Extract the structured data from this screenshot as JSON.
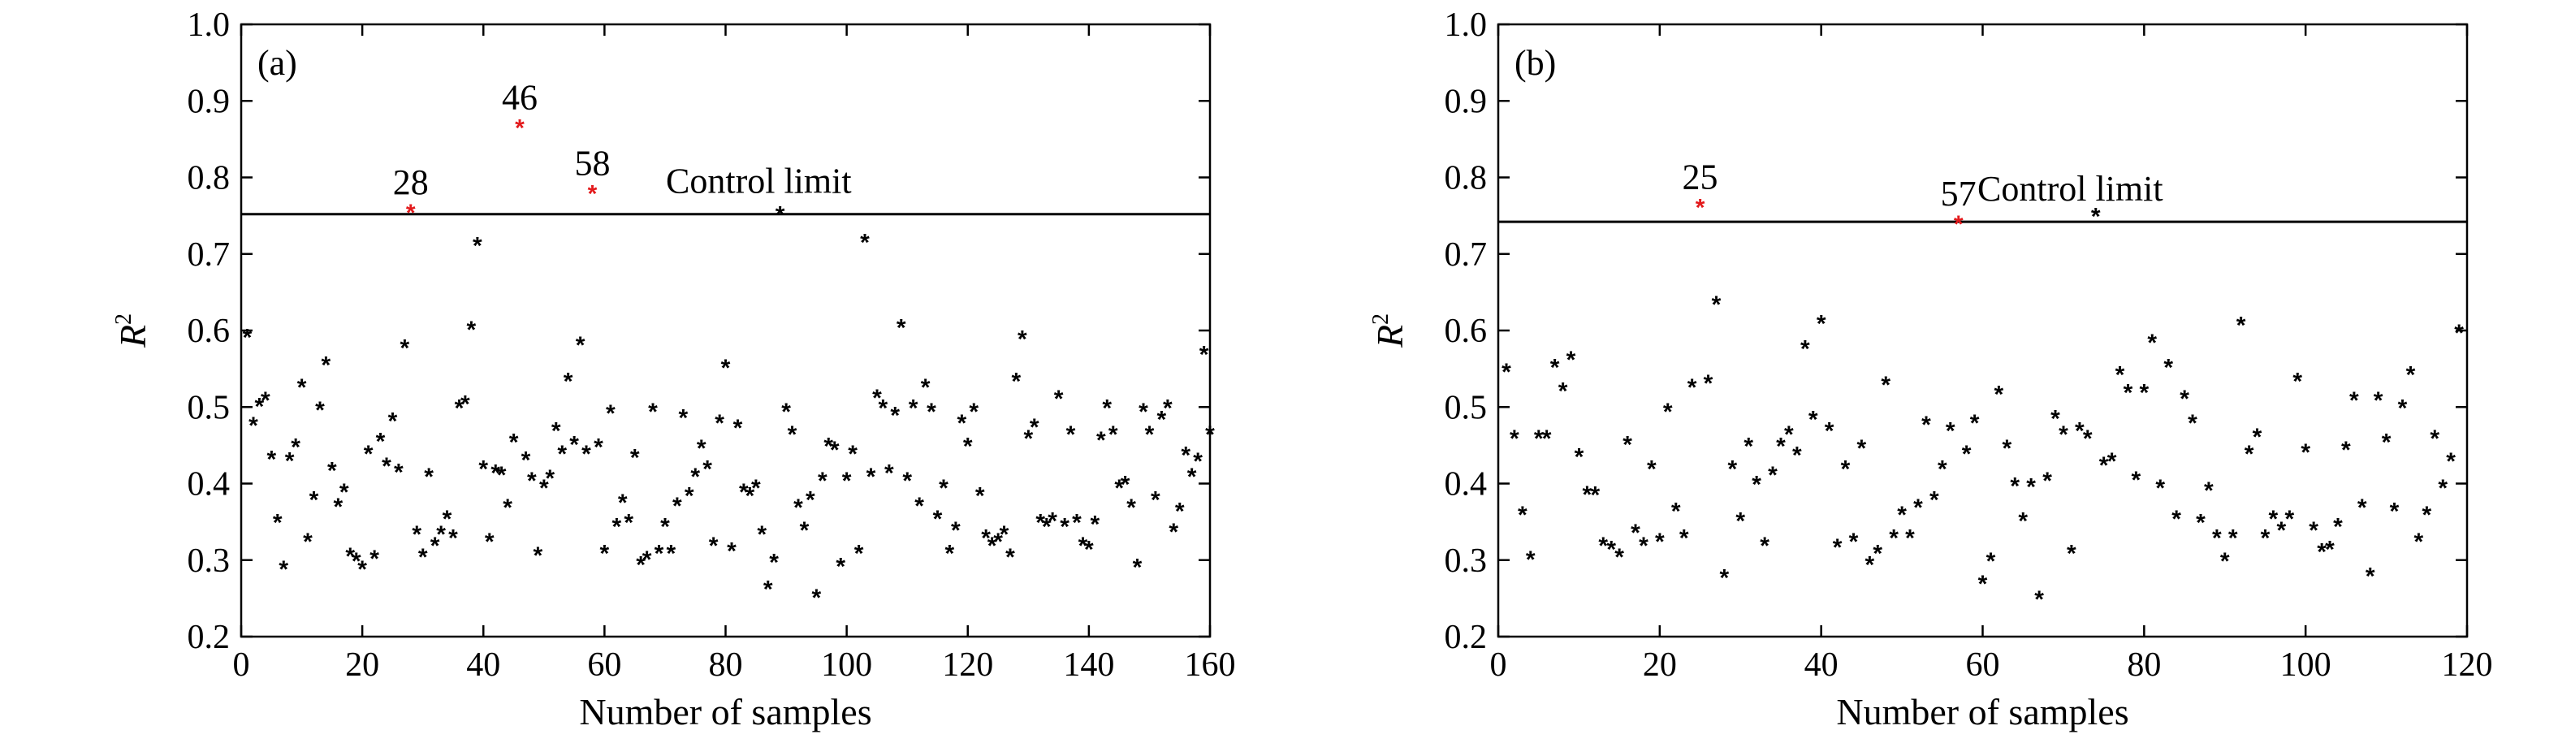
{
  "chart_data": [
    {
      "type": "scatter",
      "panel_label": "(a)",
      "xlabel": "Number of samples",
      "ylabel": "R",
      "ylabel_sup": "2",
      "xlim": [
        0,
        160
      ],
      "ylim": [
        0.2,
        1.0
      ],
      "xticks": [
        0,
        20,
        40,
        60,
        80,
        100,
        120,
        140,
        160
      ],
      "yticks": [
        0.2,
        0.3,
        0.4,
        0.5,
        0.6,
        0.7,
        0.8,
        0.9,
        1.0
      ],
      "ytick_labels": [
        "0.2",
        "0.3",
        "0.4",
        "0.5",
        "0.6",
        "0.7",
        "0.8",
        "0.9",
        "1.0"
      ],
      "control_limit": {
        "value": 0.752,
        "label": "Control limit"
      },
      "marker_color": "#000000",
      "highlight_color": "#e31a1c",
      "points": [
        [
          1,
          0.592
        ],
        [
          2,
          0.477
        ],
        [
          3,
          0.502
        ],
        [
          4,
          0.51
        ],
        [
          5,
          0.433
        ],
        [
          6,
          0.35
        ],
        [
          7,
          0.289
        ],
        [
          8,
          0.431
        ],
        [
          9,
          0.449
        ],
        [
          10,
          0.527
        ],
        [
          11,
          0.325
        ],
        [
          12,
          0.38
        ],
        [
          13,
          0.497
        ],
        [
          14,
          0.556
        ],
        [
          15,
          0.418
        ],
        [
          16,
          0.371
        ],
        [
          17,
          0.39
        ],
        [
          18,
          0.306
        ],
        [
          19,
          0.3
        ],
        [
          20,
          0.289
        ],
        [
          21,
          0.44
        ],
        [
          22,
          0.303
        ],
        [
          23,
          0.456
        ],
        [
          24,
          0.424
        ],
        [
          25,
          0.483
        ],
        [
          26,
          0.416
        ],
        [
          27,
          0.578
        ],
        [
          29,
          0.335
        ],
        [
          30,
          0.305
        ],
        [
          31,
          0.41
        ],
        [
          32,
          0.32
        ],
        [
          33,
          0.335
        ],
        [
          34,
          0.355
        ],
        [
          35,
          0.33
        ],
        [
          36,
          0.5
        ],
        [
          37,
          0.505
        ],
        [
          38,
          0.602
        ],
        [
          39,
          0.712
        ],
        [
          40,
          0.42
        ],
        [
          41,
          0.325
        ],
        [
          42,
          0.415
        ],
        [
          43,
          0.412
        ],
        [
          44,
          0.37
        ],
        [
          45,
          0.455
        ],
        [
          47,
          0.432
        ],
        [
          48,
          0.405
        ],
        [
          49,
          0.307
        ],
        [
          50,
          0.395
        ],
        [
          51,
          0.408
        ],
        [
          52,
          0.47
        ],
        [
          53,
          0.44
        ],
        [
          54,
          0.535
        ],
        [
          55,
          0.452
        ],
        [
          56,
          0.582
        ],
        [
          57,
          0.44
        ],
        [
          59,
          0.449
        ],
        [
          60,
          0.31
        ],
        [
          61,
          0.493
        ],
        [
          62,
          0.345
        ],
        [
          63,
          0.376
        ],
        [
          64,
          0.35
        ],
        [
          65,
          0.435
        ],
        [
          66,
          0.295
        ],
        [
          67,
          0.302
        ],
        [
          68,
          0.495
        ],
        [
          69,
          0.31
        ],
        [
          70,
          0.345
        ],
        [
          71,
          0.31
        ],
        [
          72,
          0.372
        ],
        [
          73,
          0.487
        ],
        [
          74,
          0.385
        ],
        [
          75,
          0.41
        ],
        [
          76,
          0.447
        ],
        [
          77,
          0.42
        ],
        [
          78,
          0.32
        ],
        [
          79,
          0.48
        ],
        [
          80,
          0.552
        ],
        [
          81,
          0.313
        ],
        [
          82,
          0.474
        ],
        [
          83,
          0.39
        ],
        [
          84,
          0.385
        ],
        [
          85,
          0.395
        ],
        [
          86,
          0.335
        ],
        [
          87,
          0.263
        ],
        [
          88,
          0.298
        ],
        [
          89,
          0.752
        ],
        [
          90,
          0.495
        ],
        [
          91,
          0.465
        ],
        [
          92,
          0.37
        ],
        [
          93,
          0.34
        ],
        [
          94,
          0.38
        ],
        [
          95,
          0.252
        ],
        [
          96,
          0.405
        ],
        [
          97,
          0.45
        ],
        [
          98,
          0.445
        ],
        [
          99,
          0.293
        ],
        [
          100,
          0.405
        ],
        [
          101,
          0.44
        ],
        [
          102,
          0.31
        ],
        [
          103,
          0.716
        ],
        [
          104,
          0.41
        ],
        [
          105,
          0.513
        ],
        [
          106,
          0.5
        ],
        [
          107,
          0.415
        ],
        [
          108,
          0.49
        ],
        [
          109,
          0.605
        ],
        [
          110,
          0.405
        ],
        [
          111,
          0.5
        ],
        [
          112,
          0.372
        ],
        [
          113,
          0.527
        ],
        [
          114,
          0.495
        ],
        [
          115,
          0.355
        ],
        [
          116,
          0.395
        ],
        [
          117,
          0.31
        ],
        [
          118,
          0.34
        ],
        [
          119,
          0.48
        ],
        [
          120,
          0.45
        ],
        [
          121,
          0.495
        ],
        [
          122,
          0.385
        ],
        [
          123,
          0.33
        ],
        [
          124,
          0.32
        ],
        [
          125,
          0.325
        ],
        [
          126,
          0.335
        ],
        [
          127,
          0.305
        ],
        [
          128,
          0.535
        ],
        [
          129,
          0.59
        ],
        [
          130,
          0.46
        ],
        [
          131,
          0.475
        ],
        [
          132,
          0.35
        ],
        [
          133,
          0.345
        ],
        [
          134,
          0.352
        ],
        [
          135,
          0.512
        ],
        [
          136,
          0.345
        ],
        [
          137,
          0.465
        ],
        [
          138,
          0.35
        ],
        [
          139,
          0.32
        ],
        [
          140,
          0.315
        ],
        [
          141,
          0.348
        ],
        [
          142,
          0.458
        ],
        [
          143,
          0.5
        ],
        [
          144,
          0.465
        ],
        [
          145,
          0.395
        ],
        [
          146,
          0.4
        ],
        [
          147,
          0.37
        ],
        [
          148,
          0.292
        ],
        [
          149,
          0.495
        ],
        [
          150,
          0.465
        ],
        [
          151,
          0.38
        ],
        [
          152,
          0.485
        ],
        [
          153,
          0.5
        ],
        [
          154,
          0.338
        ],
        [
          155,
          0.365
        ],
        [
          156,
          0.438
        ],
        [
          157,
          0.41
        ],
        [
          158,
          0.43
        ],
        [
          159,
          0.57
        ],
        [
          160,
          0.465
        ]
      ],
      "highlights": [
        {
          "x": 28,
          "y": 0.755,
          "label": "28"
        },
        {
          "x": 46,
          "y": 0.866,
          "label": "46"
        },
        {
          "x": 58,
          "y": 0.78,
          "label": "58"
        }
      ]
    },
    {
      "type": "scatter",
      "panel_label": "(b)",
      "xlabel": "Number of samples",
      "ylabel": "R",
      "ylabel_sup": "2",
      "xlim": [
        0,
        120
      ],
      "ylim": [
        0.2,
        1.0
      ],
      "xticks": [
        0,
        20,
        40,
        60,
        80,
        100,
        120
      ],
      "yticks": [
        0.2,
        0.3,
        0.4,
        0.5,
        0.6,
        0.7,
        0.8,
        0.9,
        1.0
      ],
      "ytick_labels": [
        "0.2",
        "0.3",
        "0.4",
        "0.5",
        "0.6",
        "0.7",
        "0.8",
        "0.9",
        "1.0"
      ],
      "control_limit": {
        "value": 0.742,
        "label": "Control limit"
      },
      "marker_color": "#000000",
      "highlight_color": "#e31a1c",
      "points": [
        [
          1,
          0.547
        ],
        [
          2,
          0.46
        ],
        [
          3,
          0.36
        ],
        [
          4,
          0.302
        ],
        [
          5,
          0.46
        ],
        [
          6,
          0.46
        ],
        [
          7,
          0.553
        ],
        [
          8,
          0.522
        ],
        [
          9,
          0.563
        ],
        [
          10,
          0.436
        ],
        [
          11,
          0.387
        ],
        [
          12,
          0.386
        ],
        [
          13,
          0.32
        ],
        [
          14,
          0.315
        ],
        [
          15,
          0.305
        ],
        [
          16,
          0.452
        ],
        [
          17,
          0.337
        ],
        [
          18,
          0.32
        ],
        [
          19,
          0.42
        ],
        [
          20,
          0.325
        ],
        [
          21,
          0.495
        ],
        [
          22,
          0.365
        ],
        [
          23,
          0.33
        ],
        [
          24,
          0.527
        ],
        [
          26,
          0.532
        ],
        [
          27,
          0.635
        ],
        [
          28,
          0.278
        ],
        [
          29,
          0.42
        ],
        [
          30,
          0.352
        ],
        [
          31,
          0.45
        ],
        [
          32,
          0.4
        ],
        [
          33,
          0.32
        ],
        [
          34,
          0.412
        ],
        [
          35,
          0.45
        ],
        [
          36,
          0.465
        ],
        [
          37,
          0.438
        ],
        [
          38,
          0.577
        ],
        [
          39,
          0.485
        ],
        [
          40,
          0.61
        ],
        [
          41,
          0.47
        ],
        [
          42,
          0.318
        ],
        [
          43,
          0.42
        ],
        [
          44,
          0.325
        ],
        [
          45,
          0.447
        ],
        [
          46,
          0.295
        ],
        [
          47,
          0.31
        ],
        [
          48,
          0.53
        ],
        [
          49,
          0.33
        ],
        [
          50,
          0.36
        ],
        [
          51,
          0.33
        ],
        [
          52,
          0.37
        ],
        [
          53,
          0.478
        ],
        [
          54,
          0.38
        ],
        [
          55,
          0.42
        ],
        [
          56,
          0.47
        ],
        [
          58,
          0.44
        ],
        [
          59,
          0.48
        ],
        [
          60,
          0.27
        ],
        [
          61,
          0.3
        ],
        [
          62,
          0.518
        ],
        [
          63,
          0.447
        ],
        [
          64,
          0.398
        ],
        [
          65,
          0.352
        ],
        [
          66,
          0.397
        ],
        [
          67,
          0.25
        ],
        [
          68,
          0.405
        ],
        [
          69,
          0.486
        ],
        [
          70,
          0.465
        ],
        [
          71,
          0.31
        ],
        [
          72,
          0.47
        ],
        [
          73,
          0.46
        ],
        [
          74,
          0.75
        ],
        [
          75,
          0.425
        ],
        [
          76,
          0.43
        ],
        [
          77,
          0.543
        ],
        [
          78,
          0.52
        ],
        [
          79,
          0.406
        ],
        [
          80,
          0.52
        ],
        [
          81,
          0.585
        ],
        [
          82,
          0.395
        ],
        [
          83,
          0.553
        ],
        [
          84,
          0.355
        ],
        [
          85,
          0.512
        ],
        [
          86,
          0.48
        ],
        [
          87,
          0.35
        ],
        [
          88,
          0.392
        ],
        [
          89,
          0.33
        ],
        [
          90,
          0.3
        ],
        [
          91,
          0.33
        ],
        [
          92,
          0.608
        ],
        [
          93,
          0.44
        ],
        [
          94,
          0.462
        ],
        [
          95,
          0.33
        ],
        [
          96,
          0.355
        ],
        [
          97,
          0.34
        ],
        [
          98,
          0.355
        ],
        [
          99,
          0.535
        ],
        [
          100,
          0.442
        ],
        [
          101,
          0.34
        ],
        [
          102,
          0.312
        ],
        [
          103,
          0.315
        ],
        [
          104,
          0.345
        ],
        [
          105,
          0.445
        ],
        [
          106,
          0.51
        ],
        [
          107,
          0.37
        ],
        [
          108,
          0.28
        ],
        [
          109,
          0.51
        ],
        [
          110,
          0.455
        ],
        [
          111,
          0.365
        ],
        [
          112,
          0.5
        ],
        [
          113,
          0.543
        ],
        [
          114,
          0.325
        ],
        [
          115,
          0.36
        ],
        [
          116,
          0.46
        ],
        [
          117,
          0.395
        ],
        [
          118,
          0.43
        ],
        [
          119,
          0.598
        ]
      ],
      "highlights": [
        {
          "x": 25,
          "y": 0.762,
          "label": "25"
        },
        {
          "x": 57,
          "y": 0.74,
          "label": "57"
        }
      ]
    }
  ]
}
